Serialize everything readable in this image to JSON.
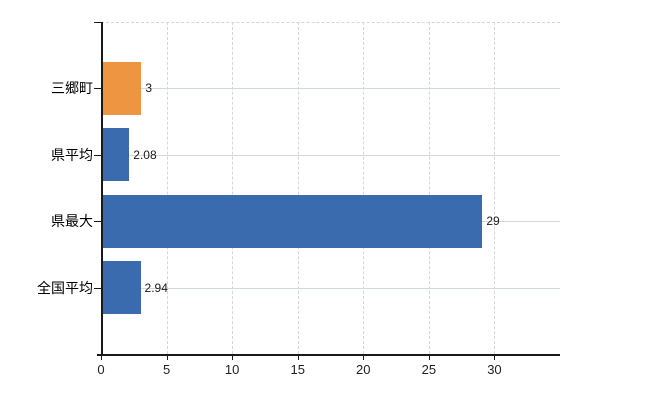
{
  "chart_data": {
    "type": "bar",
    "orientation": "horizontal",
    "title": "",
    "categories": [
      "三郷町",
      "県平均",
      "県最大",
      "全国平均"
    ],
    "values": [
      3,
      2.08,
      29,
      2.94
    ],
    "value_labels": [
      "3",
      "2.08",
      "29",
      "2.94"
    ],
    "series": [
      {
        "name": "value",
        "values": [
          3,
          2.08,
          29,
          2.94
        ]
      }
    ],
    "bar_colors": [
      "#ED9540",
      "#3A6BAE",
      "#3A6BAE",
      "#3A6BAE"
    ],
    "x_ticks": [
      0,
      5,
      10,
      15,
      20,
      25,
      30
    ],
    "xlim": [
      0,
      35
    ],
    "xlabel": "",
    "ylabel": "",
    "grid": {
      "vertical": "dashed",
      "horizontal": "solid",
      "top_border": "dashed"
    },
    "legend": "none",
    "colors": {
      "bar_blue": "#3A6BAE",
      "bar_orange": "#ED9540",
      "axis": "#1a1a1a",
      "grid_vertical": "#d8d5da",
      "grid_horizontal": "#d3dad3",
      "label_text": "#000000",
      "number_text": "#1f1f1f"
    }
  }
}
